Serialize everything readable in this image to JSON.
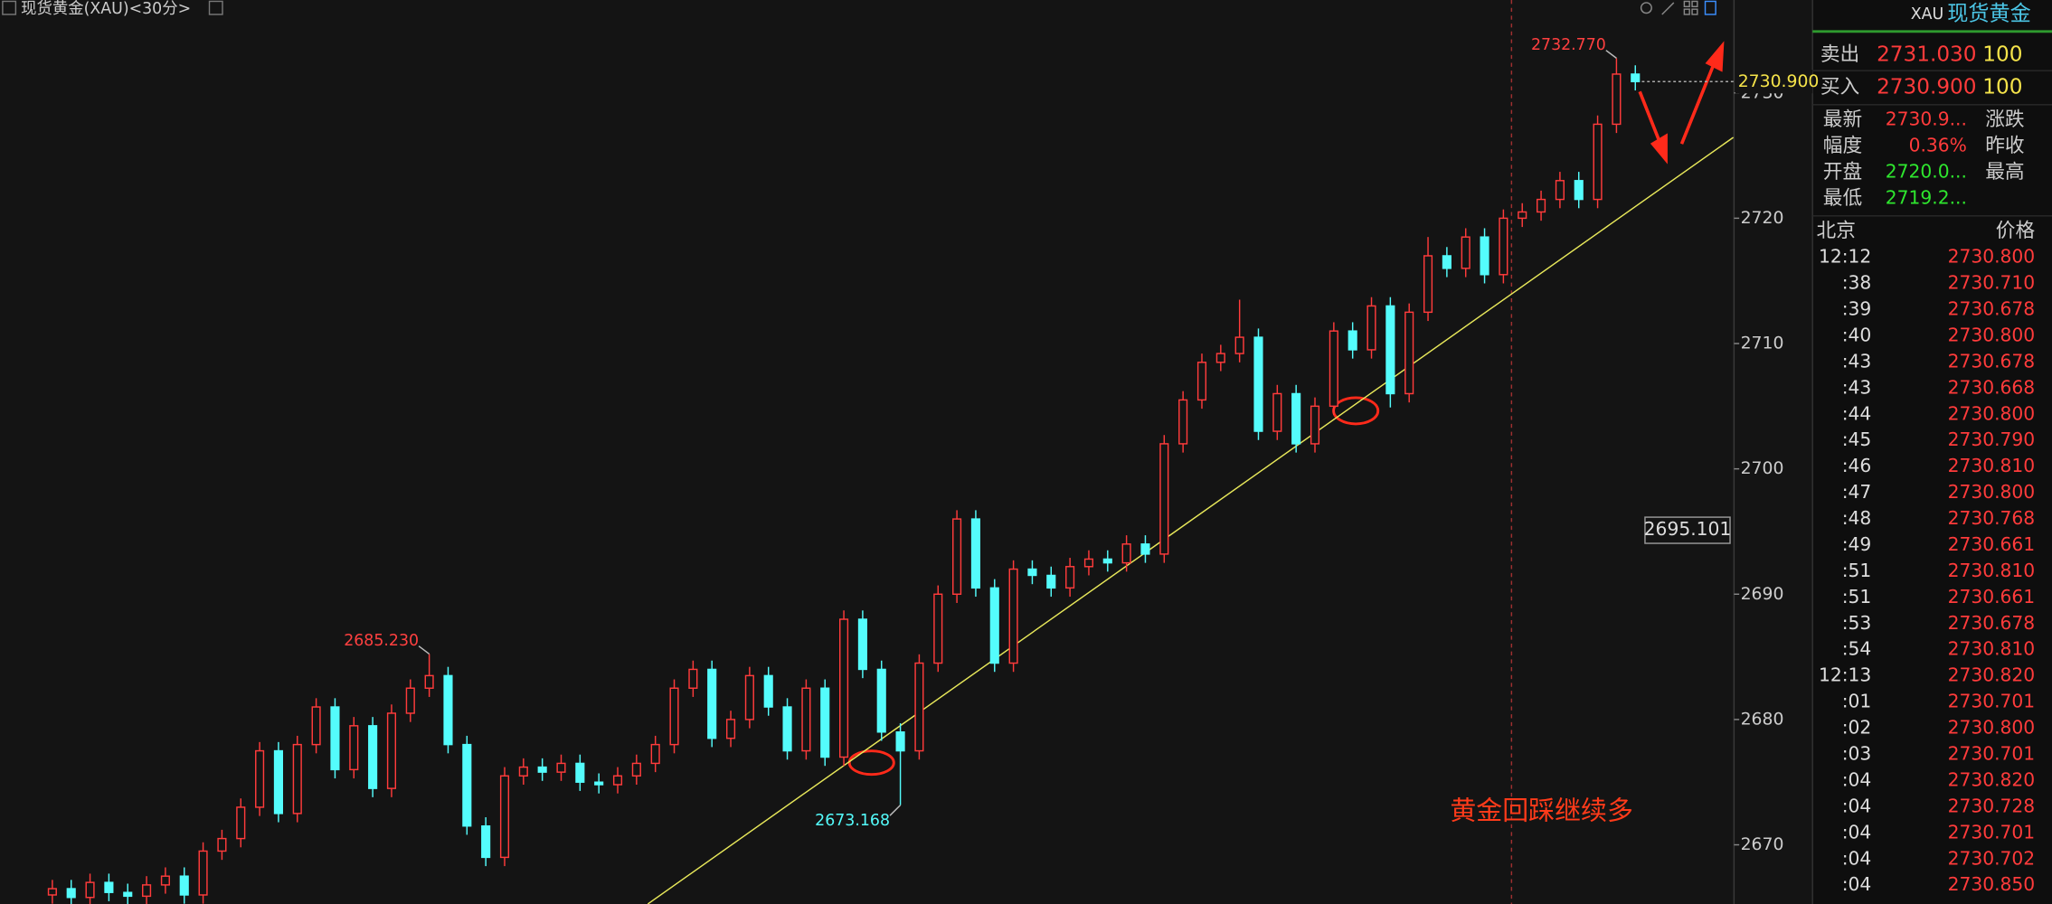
{
  "chart_data": {
    "type": "candlestick",
    "title": "现货黄金(XAU)<30分>",
    "open": [
      2666.0,
      2666.5,
      2665.8,
      2667.0,
      2666.2,
      2665.9,
      2666.8,
      2667.5,
      2666.0,
      2669.5,
      2670.5,
      2673.0,
      2677.5,
      2672.5,
      2678.0,
      2681.0,
      2676.0,
      2679.5,
      2674.5,
      2680.5,
      2682.5,
      2683.5,
      2678.0,
      2671.5,
      2669.0,
      2675.5,
      2676.2,
      2675.8,
      2676.5,
      2675.0,
      2674.8,
      2675.5,
      2676.5,
      2678.0,
      2682.5,
      2684.0,
      2678.5,
      2680.0,
      2683.5,
      2681.0,
      2677.5,
      2682.5,
      2677.0,
      2688.0,
      2684.0,
      2679.0,
      2677.5,
      2684.5,
      2690.0,
      2696.0,
      2690.5,
      2684.5,
      2692.0,
      2691.5,
      2690.5,
      2692.2,
      2692.8,
      2692.5,
      2694.0,
      2693.2,
      2702.0,
      2705.5,
      2708.5,
      2709.2,
      2710.5,
      2703.0,
      2706.0,
      2702.0,
      2705.0,
      2711.0,
      2709.5,
      2713.0,
      2706.0,
      2712.5,
      2717.0,
      2716.0,
      2718.5,
      2715.5,
      2720.0,
      2720.5,
      2721.5,
      2723.0,
      2721.5,
      2727.5,
      2731.5
    ],
    "high": [
      2667.2,
      2667.2,
      2667.7,
      2667.7,
      2666.9,
      2667.5,
      2668.2,
      2668.2,
      2670.2,
      2671.2,
      2673.7,
      2678.2,
      2678.2,
      2678.7,
      2681.7,
      2681.7,
      2680.2,
      2680.2,
      2681.2,
      2683.2,
      2685.23,
      2684.2,
      2678.7,
      2672.2,
      2676.2,
      2676.9,
      2676.9,
      2677.2,
      2677.2,
      2675.7,
      2676.2,
      2677.2,
      2678.7,
      2683.2,
      2684.7,
      2684.7,
      2680.7,
      2684.2,
      2684.2,
      2681.7,
      2683.2,
      2683.2,
      2688.7,
      2688.7,
      2684.7,
      2679.7,
      2685.2,
      2690.7,
      2696.7,
      2696.7,
      2691.2,
      2692.7,
      2692.7,
      2692.2,
      2692.9,
      2693.5,
      2693.5,
      2694.7,
      2694.7,
      2702.7,
      2706.2,
      2709.2,
      2709.9,
      2713.5,
      2711.2,
      2706.7,
      2706.7,
      2705.7,
      2711.7,
      2711.7,
      2713.7,
      2713.7,
      2713.2,
      2718.5,
      2717.7,
      2719.2,
      2719.2,
      2720.7,
      2721.2,
      2722.2,
      2723.7,
      2723.7,
      2728.2,
      2732.77,
      2732.2
    ],
    "low": [
      2665.3,
      2665.1,
      2665.1,
      2665.5,
      2665.2,
      2665.2,
      2666.1,
      2665.3,
      2665.3,
      2668.8,
      2669.8,
      2672.3,
      2671.8,
      2671.8,
      2677.3,
      2675.3,
      2675.3,
      2673.8,
      2673.8,
      2679.8,
      2681.8,
      2677.3,
      2670.8,
      2668.3,
      2668.3,
      2674.8,
      2675.1,
      2675.1,
      2674.3,
      2674.1,
      2674.1,
      2674.8,
      2675.8,
      2677.3,
      2681.8,
      2677.8,
      2677.8,
      2679.3,
      2680.3,
      2676.8,
      2676.8,
      2676.3,
      2676.3,
      2683.3,
      2678.3,
      2673.168,
      2676.8,
      2683.8,
      2689.3,
      2689.8,
      2683.8,
      2683.8,
      2690.8,
      2689.8,
      2689.8,
      2691.5,
      2691.8,
      2691.8,
      2692.5,
      2692.5,
      2701.3,
      2704.8,
      2707.8,
      2708.5,
      2702.3,
      2702.3,
      2701.3,
      2701.3,
      2704.3,
      2708.8,
      2708.8,
      2704.9,
      2705.3,
      2711.8,
      2715.3,
      2715.3,
      2714.8,
      2714.8,
      2719.3,
      2719.8,
      2720.8,
      2720.8,
      2720.8,
      2726.8,
      2730.2
    ],
    "close": [
      2666.5,
      2665.8,
      2667.0,
      2666.2,
      2665.9,
      2666.8,
      2667.5,
      2666.0,
      2669.5,
      2670.5,
      2673.0,
      2677.5,
      2672.5,
      2678.0,
      2681.0,
      2676.0,
      2679.5,
      2674.5,
      2680.5,
      2682.5,
      2683.5,
      2678.0,
      2671.5,
      2669.0,
      2675.5,
      2676.2,
      2675.8,
      2676.5,
      2675.0,
      2674.8,
      2675.5,
      2676.5,
      2678.0,
      2682.5,
      2684.0,
      2678.5,
      2680.0,
      2683.5,
      2681.0,
      2677.5,
      2682.5,
      2677.0,
      2688.0,
      2684.0,
      2679.0,
      2677.5,
      2684.5,
      2690.0,
      2696.0,
      2690.5,
      2684.5,
      2692.0,
      2691.5,
      2690.5,
      2692.2,
      2692.8,
      2692.5,
      2694.0,
      2693.2,
      2702.0,
      2705.5,
      2708.5,
      2709.2,
      2710.5,
      2703.0,
      2706.0,
      2702.0,
      2705.0,
      2711.0,
      2709.5,
      2713.0,
      2706.0,
      2712.5,
      2717.0,
      2716.0,
      2718.5,
      2715.5,
      2720.0,
      2720.5,
      2721.5,
      2723.0,
      2721.5,
      2727.5,
      2731.5,
      2730.9
    ],
    "up_color": "#ff3b3b",
    "down_color": "#54fcfc",
    "ylim": [
      2665.28,
      2737.41
    ],
    "yticks": [
      2670,
      2680,
      2690,
      2700,
      2710,
      2720,
      2730
    ],
    "annotations": [
      {
        "value": 2685.23,
        "label": "2685.230"
      },
      {
        "value": 2673.168,
        "label": "2673.168"
      },
      {
        "value": 2732.77,
        "label": "2732.770"
      }
    ],
    "last_price": {
      "value": 2730.9,
      "label": "2730.900"
    },
    "crosshair_price": 2695.101,
    "trendline": {
      "x": [
        31.6,
        89.2
      ],
      "y": [
        2665.28,
        2726.45
      ],
      "color": "#e8e85a"
    },
    "note": "黄金回踩继续多"
  },
  "quote": {
    "symbol": "XAU",
    "name": "现货黄金",
    "sell": {
      "label": "卖出",
      "price": "2731.030",
      "qty": "100"
    },
    "buy": {
      "label": "买入",
      "price": "2730.900",
      "qty": "100"
    },
    "grid": [
      {
        "label": "最新",
        "value": "2730.9...",
        "label2": "涨跌"
      },
      {
        "label": "幅度",
        "value": "0.36%",
        "label2": "昨收"
      },
      {
        "label": "开盘",
        "value": "2720.0...",
        "label2": "最高"
      },
      {
        "label": "最低",
        "value": "2719.2..."
      }
    ],
    "ticks_header": {
      "time": "北京",
      "price": "价格"
    },
    "ticks": [
      [
        "12:12",
        "2730.800"
      ],
      [
        ":38",
        "2730.710"
      ],
      [
        ":39",
        "2730.678"
      ],
      [
        ":40",
        "2730.800"
      ],
      [
        ":43",
        "2730.678"
      ],
      [
        ":43",
        "2730.668"
      ],
      [
        ":44",
        "2730.800"
      ],
      [
        ":45",
        "2730.790"
      ],
      [
        ":46",
        "2730.810"
      ],
      [
        ":47",
        "2730.800"
      ],
      [
        ":48",
        "2730.768"
      ],
      [
        ":49",
        "2730.661"
      ],
      [
        ":51",
        "2730.810"
      ],
      [
        ":51",
        "2730.661"
      ],
      [
        ":53",
        "2730.678"
      ],
      [
        ":54",
        "2730.810"
      ],
      [
        "12:13",
        "2730.820"
      ],
      [
        ":01",
        "2730.701"
      ],
      [
        ":02",
        "2730.800"
      ],
      [
        ":03",
        "2730.701"
      ],
      [
        ":04",
        "2730.820"
      ],
      [
        ":04",
        "2730.728"
      ],
      [
        ":04",
        "2730.701"
      ],
      [
        ":04",
        "2730.702"
      ],
      [
        ":04",
        "2730.850"
      ]
    ]
  }
}
